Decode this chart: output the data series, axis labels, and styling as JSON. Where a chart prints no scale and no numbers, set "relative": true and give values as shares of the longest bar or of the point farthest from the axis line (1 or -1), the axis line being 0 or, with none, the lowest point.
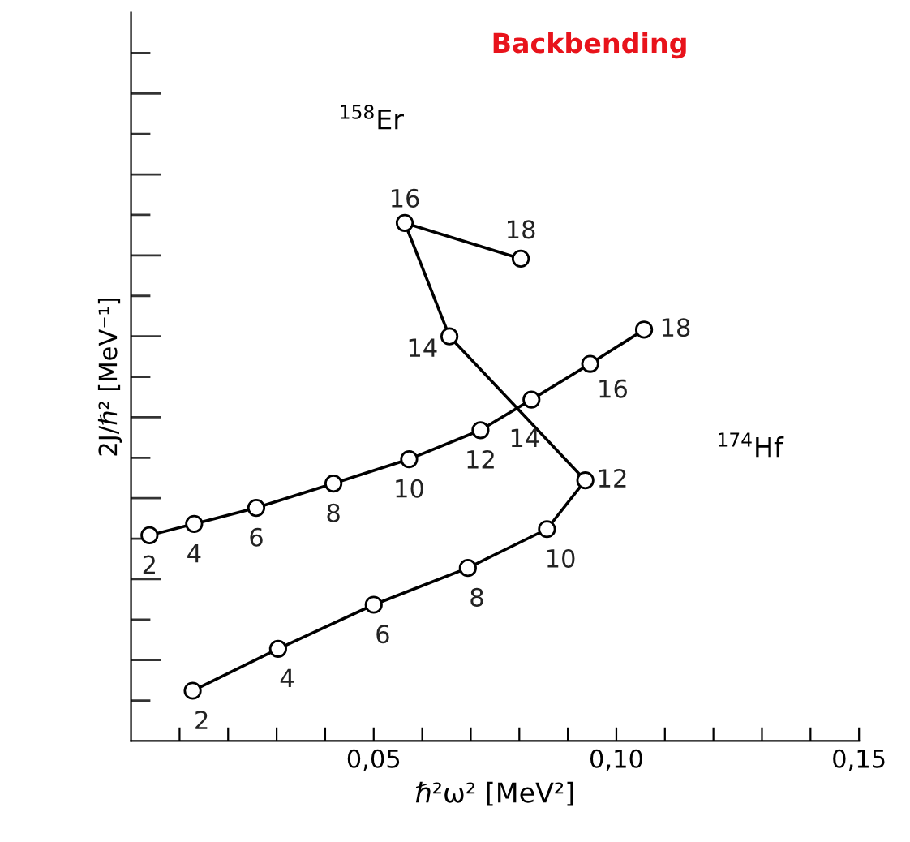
{
  "chart_data": {
    "type": "line",
    "title": "Backbending",
    "xlabel": "ℏ²ω² [MeV²]",
    "ylabel": "2J/ℏ² [MeV⁻¹]",
    "relative": true,
    "marker": "circle",
    "line_style": "solid",
    "grid": false,
    "legend": false,
    "xlim": [
      0,
      0.15
    ],
    "xticks": [
      {
        "value": 0.01,
        "label": null
      },
      {
        "value": 0.02,
        "label": null
      },
      {
        "value": 0.03,
        "label": null
      },
      {
        "value": 0.04,
        "label": null
      },
      {
        "value": 0.05,
        "label": "0,05"
      },
      {
        "value": 0.06,
        "label": null
      },
      {
        "value": 0.07,
        "label": null
      },
      {
        "value": 0.08,
        "label": null
      },
      {
        "value": 0.09,
        "label": null
      },
      {
        "value": 0.1,
        "label": "0,10"
      },
      {
        "value": 0.11,
        "label": null
      },
      {
        "value": 0.12,
        "label": null
      },
      {
        "value": 0.13,
        "label": null
      },
      {
        "value": 0.14,
        "label": null
      },
      {
        "value": 0.15,
        "label": "0,15"
      }
    ],
    "series": [
      {
        "color": "#000000",
        "x": [
          0.0127,
          0.0303,
          0.05,
          0.0694,
          0.0857,
          0.0936,
          0.0656,
          0.0564,
          0.0803
        ],
        "values": [
          0.097,
          0.178,
          0.263,
          0.334,
          0.409,
          0.503,
          0.781,
          1.0,
          0.931
        ]
      },
      {
        "color": "#000000",
        "x": [
          0.0038,
          0.013,
          0.0258,
          0.0417,
          0.0573,
          0.072,
          0.0825,
          0.0946,
          0.1057
        ],
        "values": [
          0.397,
          0.419,
          0.45,
          0.497,
          0.544,
          0.6,
          0.659,
          0.728,
          0.794
        ]
      }
    ],
    "annotations": [
      {
        "text": "2",
        "x": 0.0127,
        "y": 0.097
      },
      {
        "text": "4",
        "x": 0.0303,
        "y": 0.178
      },
      {
        "text": "6",
        "x": 0.05,
        "y": 0.263
      },
      {
        "text": "8",
        "x": 0.0694,
        "y": 0.334
      },
      {
        "text": "10",
        "x": 0.0857,
        "y": 0.409
      },
      {
        "text": "12",
        "x": 0.0936,
        "y": 0.503
      },
      {
        "text": "14",
        "x": 0.0656,
        "y": 0.781
      },
      {
        "text": "16",
        "x": 0.0564,
        "y": 1.0
      },
      {
        "text": "18",
        "x": 0.0803,
        "y": 0.931
      },
      {
        "text": "2",
        "x": 0.0038,
        "y": 0.397
      },
      {
        "text": "4",
        "x": 0.013,
        "y": 0.419
      },
      {
        "text": "6",
        "x": 0.0258,
        "y": 0.45
      },
      {
        "text": "8",
        "x": 0.0417,
        "y": 0.497
      },
      {
        "text": "10",
        "x": 0.0573,
        "y": 0.544
      },
      {
        "text": "12",
        "x": 0.072,
        "y": 0.6
      },
      {
        "text": "14",
        "x": 0.0825,
        "y": 0.659
      },
      {
        "text": "16",
        "x": 0.0946,
        "y": 0.728
      },
      {
        "text": "18",
        "x": 0.1057,
        "y": 0.794
      },
      "$^{158}$Er",
      "$^{174}$Hf"
    ]
  }
}
